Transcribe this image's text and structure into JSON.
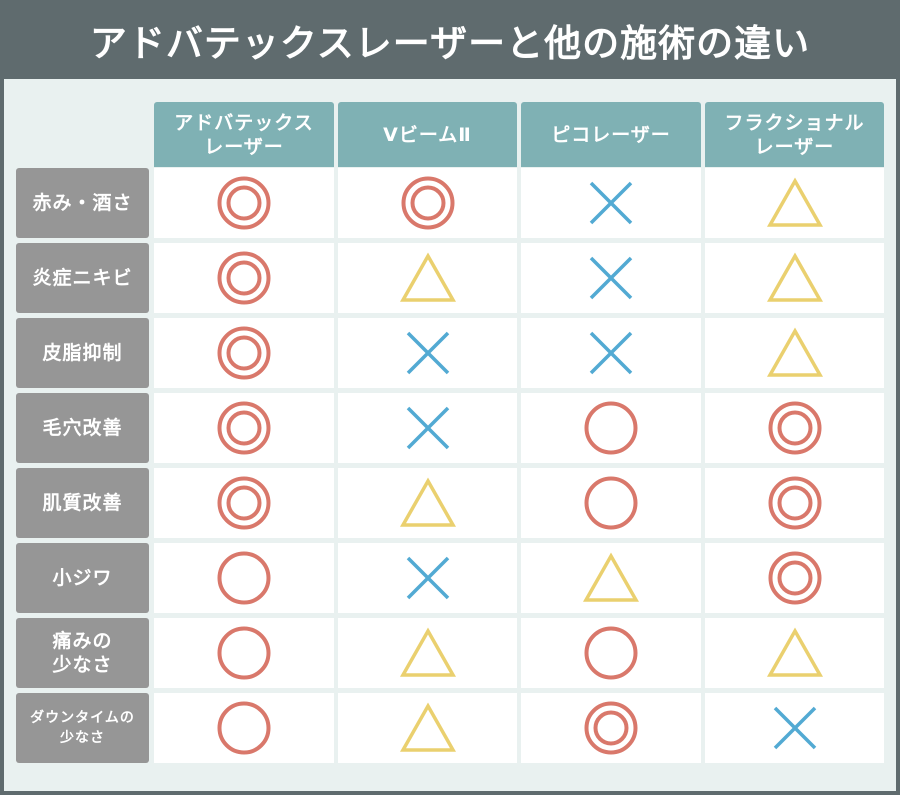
{
  "title": "アドバテックスレーザーと他の施術の違い",
  "columns": [
    {
      "label": "アドバテックス\nレーザー"
    },
    {
      "label": "VビームⅡ"
    },
    {
      "label": "ピコレーザー"
    },
    {
      "label": "フラクショナル\nレーザー"
    }
  ],
  "rows": [
    {
      "label": "赤み・酒さ",
      "small": false,
      "ratings": [
        "◎",
        "◎",
        "×",
        "△"
      ]
    },
    {
      "label": "炎症ニキビ",
      "small": false,
      "ratings": [
        "◎",
        "△",
        "×",
        "△"
      ]
    },
    {
      "label": "皮脂抑制",
      "small": false,
      "ratings": [
        "◎",
        "×",
        "×",
        "△"
      ]
    },
    {
      "label": "毛穴改善",
      "small": false,
      "ratings": [
        "◎",
        "×",
        "○",
        "◎"
      ]
    },
    {
      "label": "肌質改善",
      "small": false,
      "ratings": [
        "◎",
        "△",
        "○",
        "◎"
      ]
    },
    {
      "label": "小ジワ",
      "small": false,
      "ratings": [
        "○",
        "×",
        "△",
        "◎"
      ]
    },
    {
      "label": "痛みの\n少なさ",
      "small": false,
      "ratings": [
        "○",
        "△",
        "○",
        "△"
      ]
    },
    {
      "label": "ダウンタイムの\n少なさ",
      "small": true,
      "ratings": [
        "○",
        "△",
        "◎",
        "×"
      ]
    }
  ],
  "colors": {
    "double_circle": "#d9786b",
    "circle": "#d9786b",
    "triangle": "#ead06f",
    "cross": "#52aad3"
  }
}
